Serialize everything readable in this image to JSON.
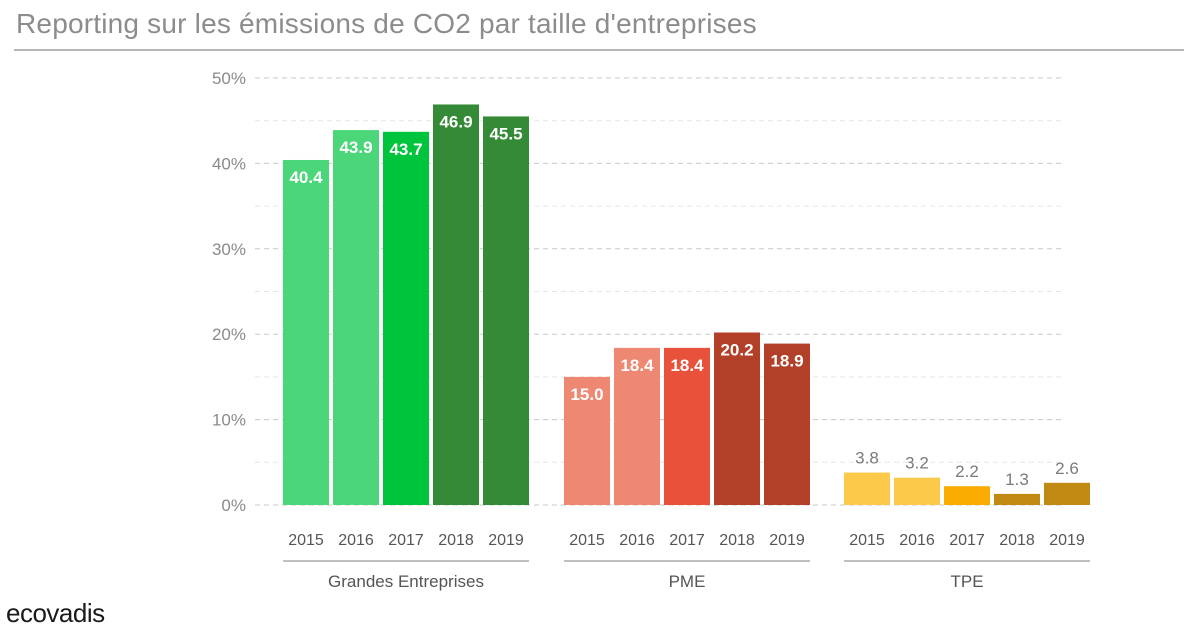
{
  "title": "Reporting sur les émissions de CO2 par taille d'entreprises",
  "logo": "ecovadis",
  "chart_data": {
    "type": "bar",
    "ylim": [
      0,
      50
    ],
    "yticks": [
      0,
      10,
      20,
      30,
      40,
      50
    ],
    "ytick_labels": [
      "0%",
      "10%",
      "20%",
      "30%",
      "40%",
      "50%"
    ],
    "grid": "dashed horizontal",
    "groups": [
      {
        "label": "Grandes Entreprises",
        "years": [
          "2015",
          "2016",
          "2017",
          "2018",
          "2019"
        ],
        "values": [
          40.4,
          43.9,
          43.7,
          46.9,
          45.5
        ],
        "value_labels": [
          "40.4",
          "43.9",
          "43.7",
          "46.9",
          "45.5"
        ],
        "colors": [
          "#4cd67a",
          "#4cd67a",
          "#00c43c",
          "#348a36",
          "#348a36"
        ]
      },
      {
        "label": "PME",
        "years": [
          "2015",
          "2016",
          "2017",
          "2018",
          "2019"
        ],
        "values": [
          15.0,
          18.4,
          18.4,
          20.2,
          18.9
        ],
        "value_labels": [
          "15.0",
          "18.4",
          "18.4",
          "20.2",
          "18.9"
        ],
        "colors": [
          "#ee8872",
          "#ee8872",
          "#e8523a",
          "#b24028",
          "#b24028"
        ]
      },
      {
        "label": "TPE",
        "years": [
          "2015",
          "2016",
          "2017",
          "2018",
          "2019"
        ],
        "values": [
          3.8,
          3.2,
          2.2,
          1.3,
          2.6
        ],
        "value_labels": [
          "3.8",
          "3.2",
          "2.2",
          "1.3",
          "2.6"
        ],
        "colors": [
          "#fcc94a",
          "#fcc94a",
          "#f9ab00",
          "#c08a12",
          "#c08a12"
        ]
      }
    ]
  }
}
